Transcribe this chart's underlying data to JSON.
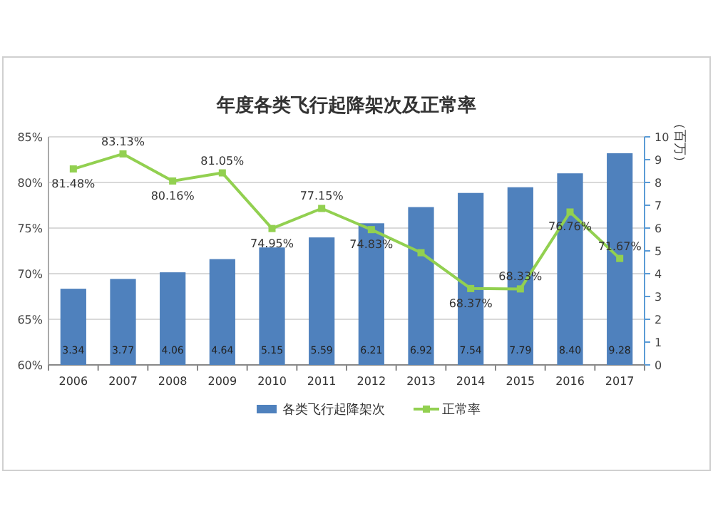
{
  "chart_data": {
    "type": "bar",
    "title": "年度各类飞行起降架次及正常率",
    "y2label": "（百万）",
    "categories": [
      "2006",
      "2007",
      "2008",
      "2009",
      "2010",
      "2011",
      "2012",
      "2013",
      "2014",
      "2015",
      "2016",
      "2017"
    ],
    "series": [
      {
        "name": "各类飞行起降架次",
        "axis": "y2",
        "color": "#4f81bd",
        "values": [
          3.34,
          3.77,
          4.06,
          4.64,
          5.15,
          5.59,
          6.21,
          6.92,
          7.54,
          7.79,
          8.4,
          9.28
        ],
        "value_labels": [
          "3.34",
          "3.77",
          "4.06",
          "4.64",
          "5.15",
          "5.59",
          "6.21",
          "6.92",
          "7.54",
          "7.79",
          "8.40",
          "9.28"
        ]
      },
      {
        "name": "正常率",
        "type": "line",
        "axis": "y",
        "color": "#92d050",
        "marker": "square",
        "values": [
          81.48,
          83.13,
          80.16,
          81.05,
          74.95,
          77.15,
          74.83,
          72.3,
          68.37,
          68.33,
          76.76,
          71.67
        ],
        "value_labels": [
          "81.48%",
          "83.13%",
          "80.16%",
          "81.05%",
          "74.95%",
          "77.15%",
          "74.83%",
          null,
          "68.37%",
          "68.33%",
          "76.76%",
          "71.67%"
        ]
      }
    ],
    "ylim": [
      60,
      85
    ],
    "yticks": [
      {
        "value": 60,
        "label": "60%"
      },
      {
        "value": 65,
        "label": "65%"
      },
      {
        "value": 70,
        "label": "70%"
      },
      {
        "value": 75,
        "label": "75%"
      },
      {
        "value": 80,
        "label": "80%"
      },
      {
        "value": 85,
        "label": "85%"
      }
    ],
    "y2lim": [
      0,
      10
    ],
    "y2ticks": [
      0,
      1,
      2,
      3,
      4,
      5,
      6,
      7,
      8,
      9,
      10
    ],
    "grid": "y",
    "legend": "bottom"
  }
}
